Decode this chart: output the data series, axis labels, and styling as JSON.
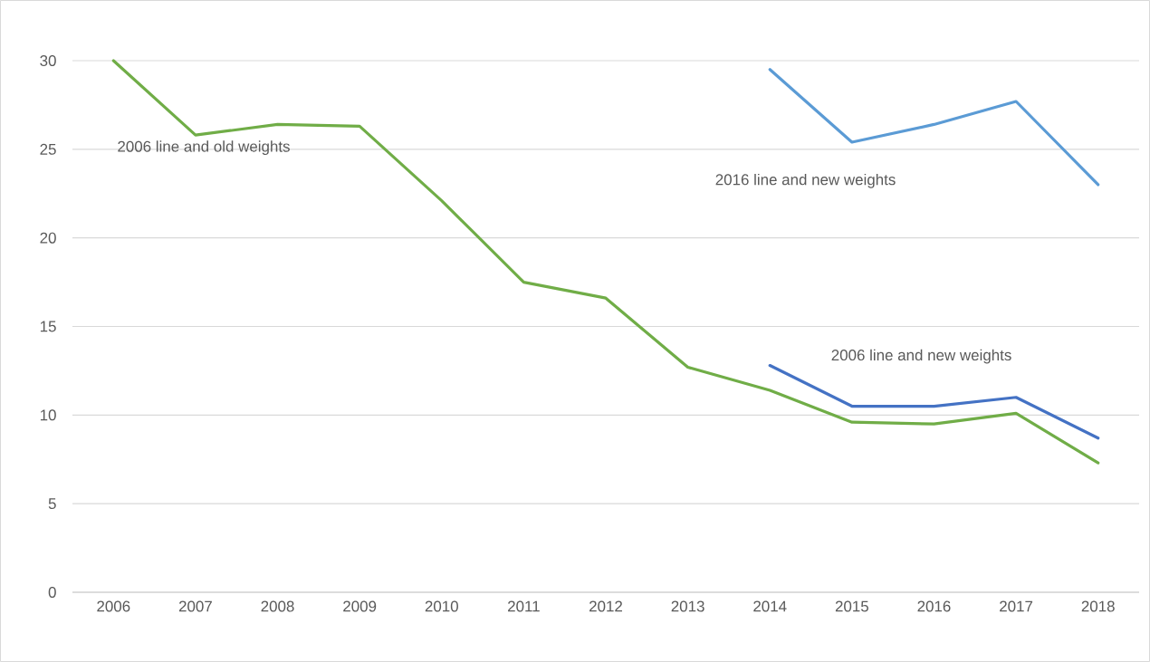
{
  "chart_data": {
    "type": "line",
    "categories": [
      "2006",
      "2007",
      "2008",
      "2009",
      "2010",
      "2011",
      "2012",
      "2013",
      "2014",
      "2015",
      "2016",
      "2017",
      "2018"
    ],
    "series": [
      {
        "name": "2006 line and old weights",
        "color": "#70ad47",
        "values": [
          30.0,
          25.8,
          26.4,
          26.3,
          22.1,
          17.5,
          16.6,
          12.7,
          11.4,
          9.6,
          9.5,
          10.1,
          7.3
        ]
      },
      {
        "name": "2016 line and new weights",
        "color": "#5b9bd5",
        "values": [
          null,
          null,
          null,
          null,
          null,
          null,
          null,
          null,
          29.5,
          25.4,
          26.4,
          27.7,
          23.0
        ]
      },
      {
        "name": "2006 line and new weights",
        "color": "#4472c4",
        "values": [
          null,
          null,
          null,
          null,
          null,
          null,
          null,
          null,
          12.8,
          10.5,
          10.5,
          11.0,
          8.7
        ]
      }
    ],
    "ylim": [
      0,
      30
    ],
    "yticks": [
      0,
      5,
      10,
      15,
      20,
      25,
      30
    ],
    "grid": "y",
    "legend": false,
    "marker": "none",
    "line_style": "solid"
  }
}
